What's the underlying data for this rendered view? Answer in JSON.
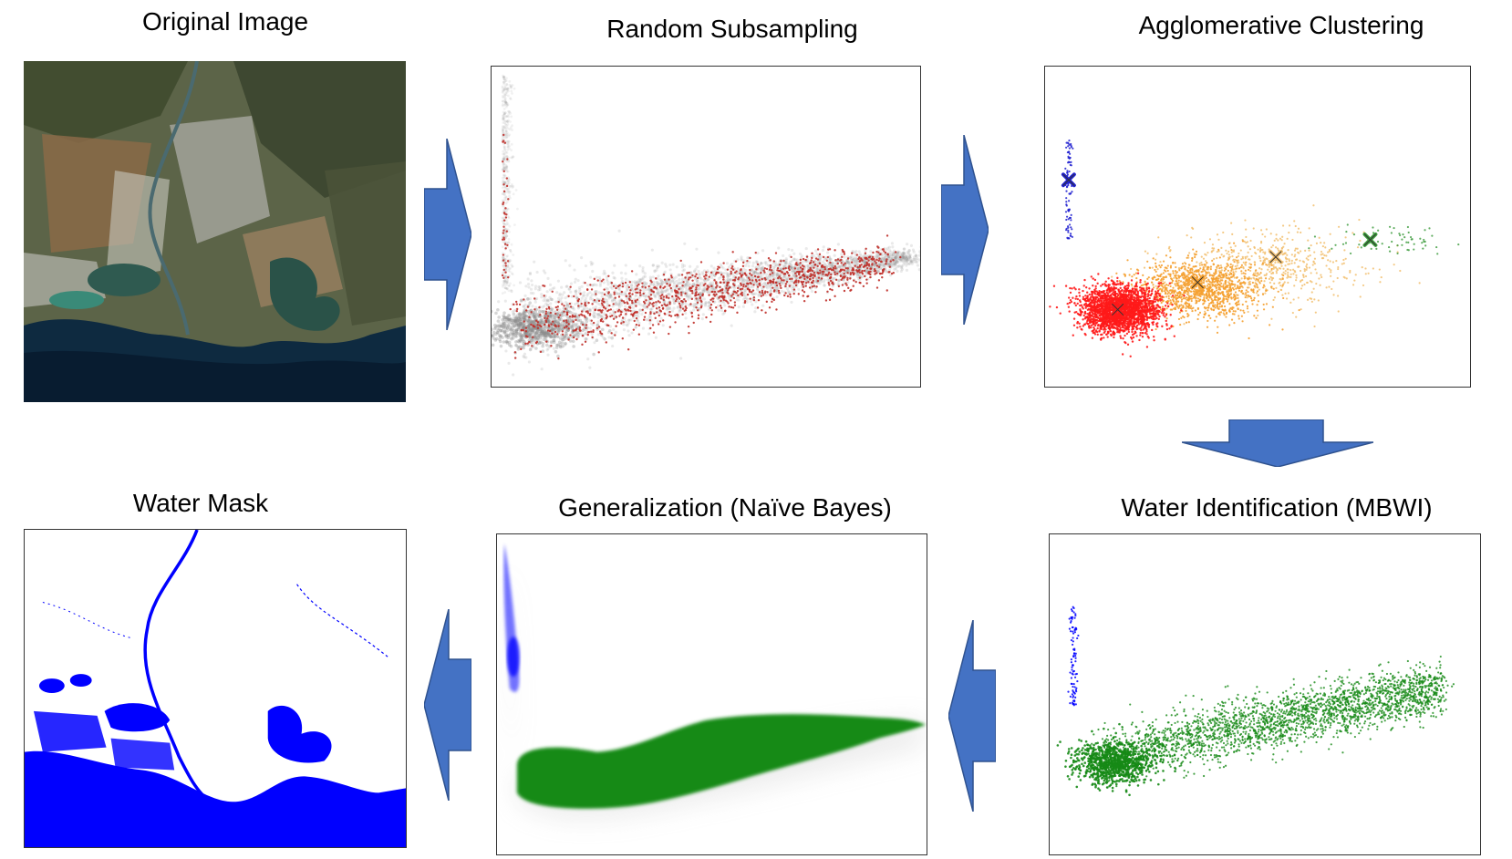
{
  "titles": {
    "original": "Original Image",
    "random": "Random Subsampling",
    "agglomerative": "Agglomerative Clustering",
    "water_mask": "Water Mask",
    "generalization": "Generalization (Naïve Bayes)",
    "water_identification": "Water Identification (MBWI)"
  },
  "colors": {
    "arrow": "#4472c4",
    "arrow_stroke": "#2f528f",
    "subsample_points": "#c0302a",
    "background_cloud": "#8a8a8a",
    "cluster_red": "#ff1a1a",
    "cluster_orange": "#f5a030",
    "cluster_light_orange": "#f2c070",
    "cluster_green": "#3a9a3a",
    "cluster_blue": "#2020d0",
    "water": "#0000ff",
    "non_water": "#168a16"
  },
  "icons": {
    "flow_arrows": "block-arrow",
    "cluster_centers": "x-mark"
  }
}
